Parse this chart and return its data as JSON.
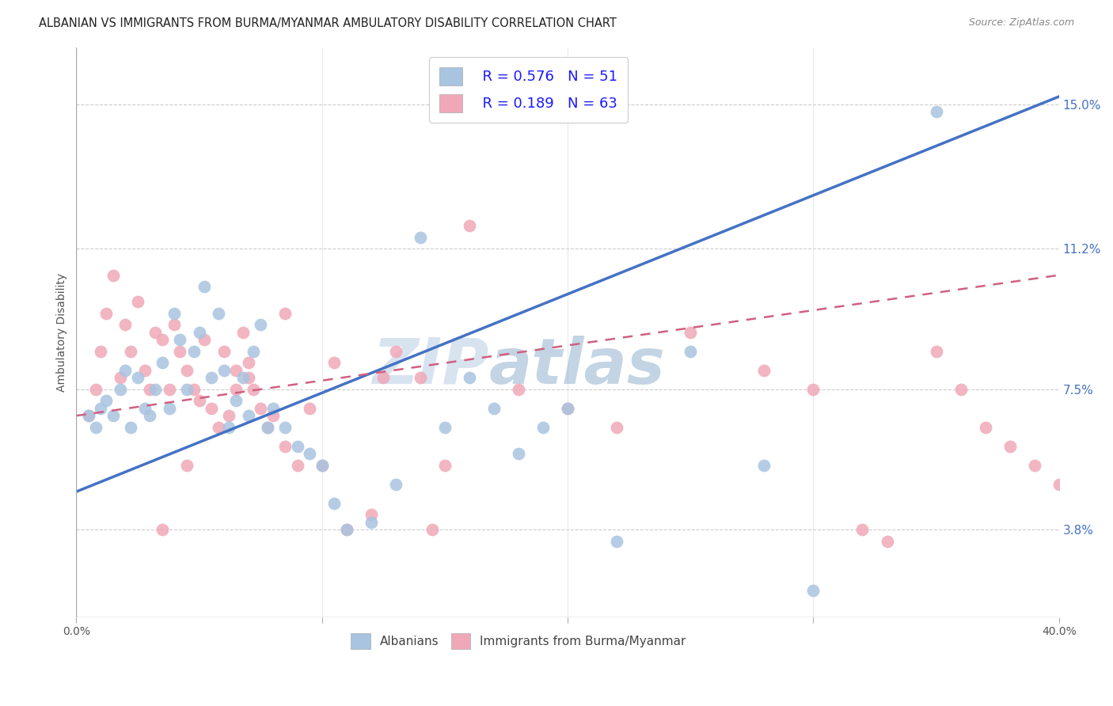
{
  "title": "ALBANIAN VS IMMIGRANTS FROM BURMA/MYANMAR AMBULATORY DISABILITY CORRELATION CHART",
  "source": "Source: ZipAtlas.com",
  "ylabel": "Ambulatory Disability",
  "ytick_values": [
    3.8,
    7.5,
    11.2,
    15.0
  ],
  "xlim": [
    0.0,
    40.0
  ],
  "ylim": [
    1.5,
    16.5
  ],
  "legend_r1": "R = 0.576",
  "legend_n1": "N = 51",
  "legend_r2": "R = 0.189",
  "legend_n2": "N = 63",
  "color_albanian": "#a8c4e0",
  "color_burma": "#f0a8b8",
  "color_line_albanian": "#4472c4",
  "color_line_burma": "#d06080",
  "watermark_zip": "ZIP",
  "watermark_atlas": "atlas",
  "alb_line_x0": 0.0,
  "alb_line_y0": 4.8,
  "alb_line_x1": 40.0,
  "alb_line_y1": 15.2,
  "bur_line_x0": 0.0,
  "bur_line_y0": 6.8,
  "bur_line_x1": 40.0,
  "bur_line_y1": 10.5,
  "albanian_x": [
    0.5,
    0.8,
    1.0,
    1.2,
    1.5,
    1.8,
    2.0,
    2.2,
    2.5,
    2.8,
    3.0,
    3.2,
    3.5,
    3.8,
    4.0,
    4.2,
    4.5,
    4.8,
    5.0,
    5.2,
    5.5,
    5.8,
    6.0,
    6.2,
    6.5,
    6.8,
    7.0,
    7.2,
    7.5,
    7.8,
    8.0,
    8.5,
    9.0,
    9.5,
    10.0,
    10.5,
    11.0,
    12.0,
    13.0,
    14.0,
    15.0,
    16.0,
    17.0,
    18.0,
    19.0,
    20.0,
    22.0,
    25.0,
    28.0,
    30.0,
    35.0
  ],
  "albanian_y": [
    6.8,
    6.5,
    7.0,
    7.2,
    6.8,
    7.5,
    8.0,
    6.5,
    7.8,
    7.0,
    6.8,
    7.5,
    8.2,
    7.0,
    9.5,
    8.8,
    7.5,
    8.5,
    9.0,
    10.2,
    7.8,
    9.5,
    8.0,
    6.5,
    7.2,
    7.8,
    6.8,
    8.5,
    9.2,
    6.5,
    7.0,
    6.5,
    6.0,
    5.8,
    5.5,
    4.5,
    3.8,
    4.0,
    5.0,
    11.5,
    6.5,
    7.8,
    7.0,
    5.8,
    6.5,
    7.0,
    3.5,
    8.5,
    5.5,
    2.2,
    14.8
  ],
  "burma_x": [
    0.5,
    0.8,
    1.0,
    1.2,
    1.5,
    1.8,
    2.0,
    2.2,
    2.5,
    2.8,
    3.0,
    3.2,
    3.5,
    3.8,
    4.0,
    4.2,
    4.5,
    4.8,
    5.0,
    5.2,
    5.5,
    5.8,
    6.0,
    6.2,
    6.5,
    6.8,
    7.0,
    7.2,
    7.5,
    7.8,
    8.0,
    8.5,
    9.0,
    9.5,
    10.0,
    11.0,
    12.0,
    13.0,
    14.0,
    15.0,
    16.0,
    18.0,
    20.0,
    22.0,
    25.0,
    28.0,
    30.0,
    32.0,
    33.0,
    35.0,
    36.0,
    37.0,
    38.0,
    39.0,
    40.0,
    7.0,
    8.5,
    10.5,
    12.5,
    14.5,
    6.5,
    4.5,
    3.5
  ],
  "burma_y": [
    6.8,
    7.5,
    8.5,
    9.5,
    10.5,
    7.8,
    9.2,
    8.5,
    9.8,
    8.0,
    7.5,
    9.0,
    8.8,
    7.5,
    9.2,
    8.5,
    8.0,
    7.5,
    7.2,
    8.8,
    7.0,
    6.5,
    8.5,
    6.8,
    7.5,
    9.0,
    8.2,
    7.5,
    7.0,
    6.5,
    6.8,
    6.0,
    5.5,
    7.0,
    5.5,
    3.8,
    4.2,
    8.5,
    7.8,
    5.5,
    11.8,
    7.5,
    7.0,
    6.5,
    9.0,
    8.0,
    7.5,
    3.8,
    3.5,
    8.5,
    7.5,
    6.5,
    6.0,
    5.5,
    5.0,
    7.8,
    9.5,
    8.2,
    7.8,
    3.8,
    8.0,
    5.5,
    3.8
  ]
}
